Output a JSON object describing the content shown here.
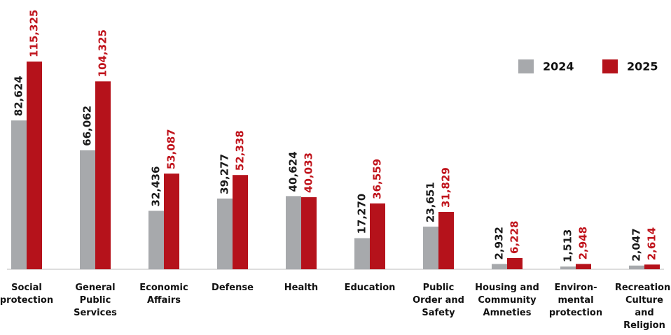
{
  "chart_data": {
    "type": "bar",
    "categories": [
      [
        "Social",
        "protection"
      ],
      [
        "General",
        "Public",
        "Services"
      ],
      [
        "Economic",
        "Affairs"
      ],
      [
        "Defense"
      ],
      [
        "Health"
      ],
      [
        "Education"
      ],
      [
        "Public",
        "Order and",
        "Safety"
      ],
      [
        "Housing and",
        "Community",
        "Amneties"
      ],
      [
        "Environ-",
        "mental",
        "protection"
      ],
      [
        "Recreation,",
        "Culture",
        "and",
        "Religion"
      ]
    ],
    "series": [
      {
        "name": "2024",
        "color": "#a7a9ac",
        "label_color": "#1a1a1a",
        "values": [
          82624,
          66062,
          32436,
          39277,
          40624,
          17270,
          23651,
          2932,
          1513,
          2047
        ],
        "value_labels": [
          "82,624",
          "66,062",
          "32,436",
          "39,277",
          "40,624",
          "17,270",
          "23,651",
          "2,932",
          "1,513",
          "2,047"
        ]
      },
      {
        "name": "2025",
        "color": "#b5121b",
        "label_color": "#c0141c",
        "values": [
          115325,
          104325,
          53087,
          52338,
          40033,
          36559,
          31829,
          6228,
          2948,
          2614
        ],
        "value_labels": [
          "115,325",
          "104,325",
          "53,087",
          "52,338",
          "40,033",
          "36,559",
          "31,829",
          "6,228",
          "2,948",
          "2,614"
        ]
      }
    ],
    "legend": "top-right"
  }
}
